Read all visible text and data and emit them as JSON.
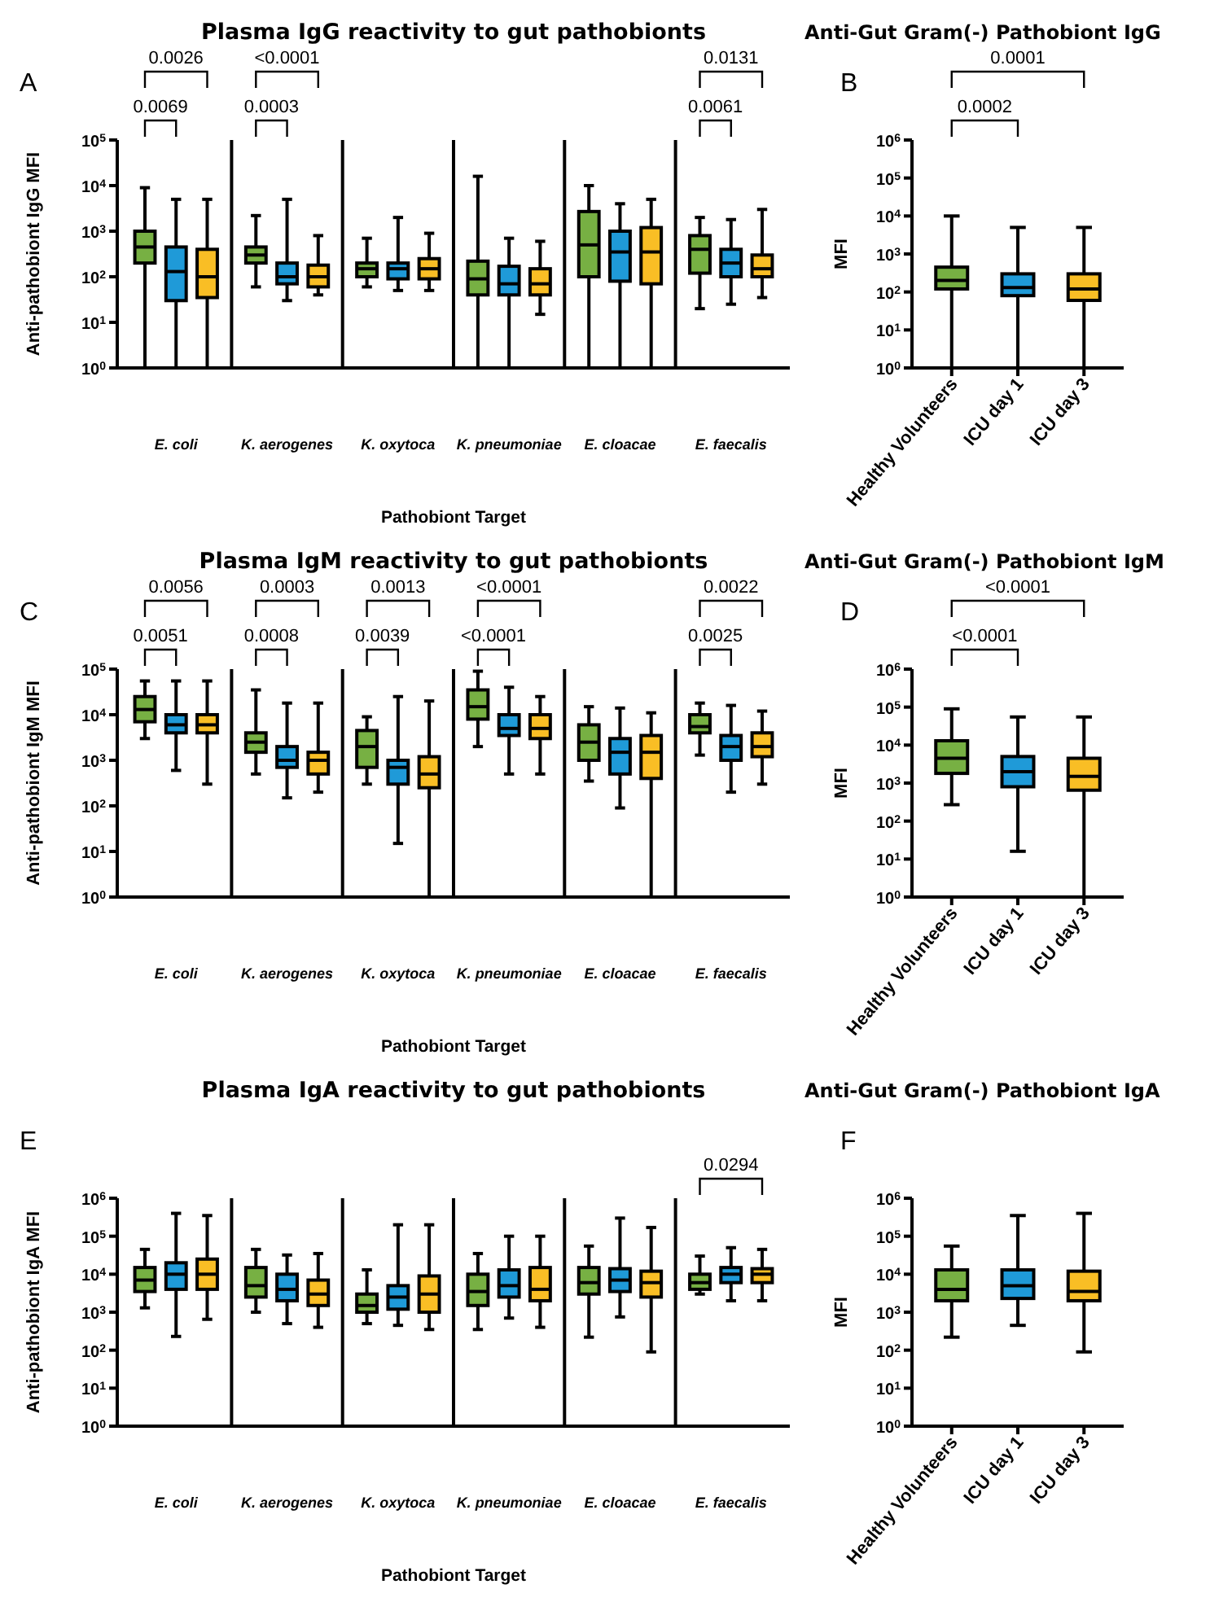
{
  "chart_data": [
    {
      "type": "box",
      "title": "Plasma IgG reactivity to gut pathobionts",
      "xlabel": "Pathobiont Target",
      "ylabel": "Anti-pathobiont IgG MFI",
      "log": true,
      "ylim": [
        1,
        100000
      ],
      "yticks": [
        {
          "value": 1,
          "label": "10$^{0}$"
        },
        {
          "value": 10,
          "label": "10$^{1}$"
        },
        {
          "value": 100,
          "label": "10$^{2}$"
        },
        {
          "value": 1000,
          "label": "10$^{3}$"
        },
        {
          "value": 10000,
          "label": "10$^{4}$"
        },
        {
          "value": 100000,
          "label": "10$^{5}$"
        }
      ],
      "categories": [
        "E. coli",
        "K. aerogenes",
        "K. oxytoca",
        "K. pneumoniae",
        "E. cloacae",
        "E. faecalis"
      ],
      "series": [
        {
          "color": "#77b043",
          "boxes": [
            {
              "low": 1,
              "q1": 200,
              "median": 450,
              "q3": 1000,
              "high": 9000
            },
            {
              "low": 60,
              "q1": 200,
              "median": 300,
              "q3": 450,
              "high": 2200
            },
            {
              "low": 60,
              "q1": 100,
              "median": 150,
              "q3": 200,
              "high": 700
            },
            {
              "low": 1,
              "q1": 40,
              "median": 90,
              "q3": 220,
              "high": 16000
            },
            {
              "low": 1,
              "q1": 100,
              "median": 500,
              "q3": 2700,
              "high": 10000
            },
            {
              "low": 20,
              "q1": 120,
              "median": 400,
              "q3": 800,
              "high": 2000
            }
          ]
        },
        {
          "color": "#1f9ad8",
          "boxes": [
            {
              "low": 1,
              "q1": 30,
              "median": 130,
              "q3": 450,
              "high": 5000
            },
            {
              "low": 30,
              "q1": 70,
              "median": 100,
              "q3": 200,
              "high": 5000
            },
            {
              "low": 50,
              "q1": 90,
              "median": 150,
              "q3": 200,
              "high": 2000
            },
            {
              "low": 1,
              "q1": 40,
              "median": 70,
              "q3": 170,
              "high": 700
            },
            {
              "low": 1,
              "q1": 80,
              "median": 350,
              "q3": 1000,
              "high": 4000
            },
            {
              "low": 25,
              "q1": 100,
              "median": 200,
              "q3": 400,
              "high": 1800
            }
          ]
        },
        {
          "color": "#f9be25",
          "boxes": [
            {
              "low": 1,
              "q1": 35,
              "median": 100,
              "q3": 400,
              "high": 5000
            },
            {
              "low": 40,
              "q1": 60,
              "median": 100,
              "q3": 180,
              "high": 800
            },
            {
              "low": 50,
              "q1": 90,
              "median": 150,
              "q3": 250,
              "high": 900
            },
            {
              "low": 15,
              "q1": 40,
              "median": 70,
              "q3": 150,
              "high": 600
            },
            {
              "low": 1,
              "q1": 70,
              "median": 350,
              "q3": 1200,
              "high": 5000
            },
            {
              "low": 35,
              "q1": 100,
              "median": 150,
              "q3": 300,
              "high": 3000
            }
          ]
        }
      ],
      "annotations": [
        "A",
        "0.0069",
        "0.0026",
        "0.0003",
        "<0.0001",
        "0.0061",
        "0.0131"
      ]
    },
    {
      "type": "box",
      "title": "Anti-Gut Gram(-) Pathobiont IgG",
      "ylabel": "MFI",
      "log": true,
      "ylim": [
        1,
        1000000
      ],
      "yticks": [
        {
          "value": 1,
          "label": "10$^{0}$"
        },
        {
          "value": 10,
          "label": "10$^{1}$"
        },
        {
          "value": 100,
          "label": "10$^{2}$"
        },
        {
          "value": 1000,
          "label": "10$^{3}$"
        },
        {
          "value": 10000,
          "label": "10$^{4}$"
        },
        {
          "value": 100000,
          "label": "10$^{5}$"
        },
        {
          "value": 1000000,
          "label": "10$^{6}$"
        }
      ],
      "categories": [
        "Healthy Volunteers",
        "ICU day 1",
        "ICU day 3"
      ],
      "colors": [
        "#77b043",
        "#1f9ad8",
        "#f9be25"
      ],
      "boxes": [
        {
          "low": 1,
          "q1": 120,
          "median": 200,
          "q3": 450,
          "high": 10000
        },
        {
          "low": 1,
          "q1": 80,
          "median": 130,
          "q3": 300,
          "high": 5000
        },
        {
          "low": 1,
          "q1": 60,
          "median": 120,
          "q3": 300,
          "high": 5000
        }
      ],
      "annotations": [
        "B",
        "0.0002",
        "0.0001"
      ]
    },
    {
      "type": "box",
      "title": "Plasma IgM reactivity to gut pathobionts",
      "xlabel": "Pathobiont Target",
      "ylabel": "Anti-pathobiont IgM MFI",
      "log": true,
      "ylim": [
        1,
        100000
      ],
      "yticks": [
        {
          "value": 1,
          "label": "10$^{0}$"
        },
        {
          "value": 10,
          "label": "10$^{1}$"
        },
        {
          "value": 100,
          "label": "10$^{2}$"
        },
        {
          "value": 1000,
          "label": "10$^{3}$"
        },
        {
          "value": 10000,
          "label": "10$^{4}$"
        },
        {
          "value": 100000,
          "label": "10$^{5}$"
        }
      ],
      "categories": [
        "E. coli",
        "K. aerogenes",
        "K. oxytoca",
        "K. pneumoniae",
        "E. cloacae",
        "E. faecalis"
      ],
      "series": [
        {
          "color": "#77b043",
          "boxes": [
            {
              "low": 3000,
              "q1": 7000,
              "median": 13000,
              "q3": 25000,
              "high": 55000
            },
            {
              "low": 500,
              "q1": 1500,
              "median": 2500,
              "q3": 4000,
              "high": 35000
            },
            {
              "low": 300,
              "q1": 700,
              "median": 2000,
              "q3": 4500,
              "high": 9000
            },
            {
              "low": 2000,
              "q1": 8000,
              "median": 15000,
              "q3": 35000,
              "high": 90000
            },
            {
              "low": 350,
              "q1": 1000,
              "median": 2500,
              "q3": 6000,
              "high": 15000
            },
            {
              "low": 1300,
              "q1": 4000,
              "median": 5500,
              "q3": 10000,
              "high": 18000
            }
          ]
        },
        {
          "color": "#1f9ad8",
          "boxes": [
            {
              "low": 600,
              "q1": 4000,
              "median": 6000,
              "q3": 10000,
              "high": 55000
            },
            {
              "low": 150,
              "q1": 700,
              "median": 1000,
              "q3": 2000,
              "high": 18000
            },
            {
              "low": 15,
              "q1": 300,
              "median": 700,
              "q3": 1000,
              "high": 25000
            },
            {
              "low": 500,
              "q1": 3500,
              "median": 5000,
              "q3": 10000,
              "high": 40000
            },
            {
              "low": 90,
              "q1": 500,
              "median": 1500,
              "q3": 3000,
              "high": 14000
            },
            {
              "low": 200,
              "q1": 1000,
              "median": 2000,
              "q3": 3500,
              "high": 16000
            }
          ]
        },
        {
          "color": "#f9be25",
          "boxes": [
            {
              "low": 300,
              "q1": 4000,
              "median": 6000,
              "q3": 10000,
              "high": 55000
            },
            {
              "low": 200,
              "q1": 500,
              "median": 1000,
              "q3": 1500,
              "high": 18000
            },
            {
              "low": 1,
              "q1": 250,
              "median": 500,
              "q3": 1200,
              "high": 20000
            },
            {
              "low": 500,
              "q1": 3000,
              "median": 5000,
              "q3": 10000,
              "high": 25000
            },
            {
              "low": 1,
              "q1": 400,
              "median": 1500,
              "q3": 3500,
              "high": 11000
            },
            {
              "low": 300,
              "q1": 1200,
              "median": 2000,
              "q3": 4000,
              "high": 12000
            }
          ]
        }
      ],
      "annotations": [
        "C",
        "0.0051",
        "0.0056",
        "0.0008",
        "0.0003",
        "0.0039",
        "0.0013",
        "<0.0001",
        "<0.0001",
        "0.0025",
        "0.0022"
      ]
    },
    {
      "type": "box",
      "title": "Anti-Gut Gram(-) Pathobiont IgM",
      "ylabel": "MFI",
      "log": true,
      "ylim": [
        1,
        1000000
      ],
      "yticks": [
        {
          "value": 1,
          "label": "10$^{0}$"
        },
        {
          "value": 10,
          "label": "10$^{1}$"
        },
        {
          "value": 100,
          "label": "10$^{2}$"
        },
        {
          "value": 1000,
          "label": "10$^{3}$"
        },
        {
          "value": 10000,
          "label": "10$^{4}$"
        },
        {
          "value": 100000,
          "label": "10$^{5}$"
        },
        {
          "value": 1000000,
          "label": "10$^{6}$"
        }
      ],
      "categories": [
        "Healthy Volunteers",
        "ICU day 1",
        "ICU day 3"
      ],
      "colors": [
        "#77b043",
        "#1f9ad8",
        "#f9be25"
      ],
      "boxes": [
        {
          "low": 270,
          "q1": 1800,
          "median": 4500,
          "q3": 13000,
          "high": 90000
        },
        {
          "low": 16,
          "q1": 800,
          "median": 2000,
          "q3": 5000,
          "high": 55000
        },
        {
          "low": 1,
          "q1": 650,
          "median": 1500,
          "q3": 4500,
          "high": 55000
        }
      ],
      "annotations": [
        "D",
        "<0.0001",
        "<0.0001"
      ]
    },
    {
      "type": "box",
      "title": "Plasma IgA reactivity to gut pathobionts",
      "xlabel": "Pathobiont Target",
      "ylabel": "Anti-pathobiont IgA MFI",
      "log": true,
      "ylim": [
        1,
        1000000
      ],
      "yticks": [
        {
          "value": 1,
          "label": "10$^{0}$"
        },
        {
          "value": 10,
          "label": "10$^{1}$"
        },
        {
          "value": 100,
          "label": "10$^{2}$"
        },
        {
          "value": 1000,
          "label": "10$^{3}$"
        },
        {
          "value": 10000,
          "label": "10$^{4}$"
        },
        {
          "value": 100000,
          "label": "10$^{5}$"
        },
        {
          "value": 1000000,
          "label": "10$^{6}$"
        }
      ],
      "categories": [
        "E. coli",
        "K. aerogenes",
        "K. oxytoca",
        "K. pneumoniae",
        "E. cloacae",
        "E. faecalis"
      ],
      "series": [
        {
          "color": "#77b043",
          "boxes": [
            {
              "low": 1300,
              "q1": 3500,
              "median": 7000,
              "q3": 15000,
              "high": 45000
            },
            {
              "low": 1000,
              "q1": 2500,
              "median": 5000,
              "q3": 15000,
              "high": 45000
            },
            {
              "low": 500,
              "q1": 1000,
              "median": 1500,
              "q3": 3000,
              "high": 13000
            },
            {
              "low": 350,
              "q1": 1500,
              "median": 3500,
              "q3": 10000,
              "high": 35000
            },
            {
              "low": 220,
              "q1": 3000,
              "median": 6000,
              "q3": 15000,
              "high": 55000
            },
            {
              "low": 3000,
              "q1": 4000,
              "median": 6000,
              "q3": 10000,
              "high": 30000
            }
          ]
        },
        {
          "color": "#1f9ad8",
          "boxes": [
            {
              "low": 230,
              "q1": 4000,
              "median": 10000,
              "q3": 20000,
              "high": 400000
            },
            {
              "low": 500,
              "q1": 2000,
              "median": 4000,
              "q3": 10000,
              "high": 32000
            },
            {
              "low": 450,
              "q1": 1200,
              "median": 2500,
              "q3": 5000,
              "high": 200000
            },
            {
              "low": 700,
              "q1": 2500,
              "median": 5000,
              "q3": 13000,
              "high": 100000
            },
            {
              "low": 750,
              "q1": 3500,
              "median": 7000,
              "q3": 14000,
              "high": 300000
            },
            {
              "low": 2000,
              "q1": 6000,
              "median": 10000,
              "q3": 15000,
              "high": 50000
            }
          ]
        },
        {
          "color": "#f9be25",
          "boxes": [
            {
              "low": 650,
              "q1": 4000,
              "median": 10000,
              "q3": 25000,
              "high": 350000
            },
            {
              "low": 400,
              "q1": 1500,
              "median": 3000,
              "q3": 7000,
              "high": 35000
            },
            {
              "low": 350,
              "q1": 1000,
              "median": 3000,
              "q3": 9000,
              "high": 200000
            },
            {
              "low": 400,
              "q1": 2000,
              "median": 4000,
              "q3": 15000,
              "high": 100000
            },
            {
              "low": 90,
              "q1": 2500,
              "median": 6000,
              "q3": 12000,
              "high": 170000
            },
            {
              "low": 2000,
              "q1": 6000,
              "median": 10000,
              "q3": 14000,
              "high": 45000
            }
          ]
        }
      ],
      "annotations": [
        "E",
        "0.0294"
      ]
    },
    {
      "type": "box",
      "title": "Anti-Gut Gram(-) Pathobiont IgA",
      "ylabel": "MFI",
      "log": true,
      "ylim": [
        1,
        1000000
      ],
      "yticks": [
        {
          "value": 1,
          "label": "10$^{0}$"
        },
        {
          "value": 10,
          "label": "10$^{1}$"
        },
        {
          "value": 100,
          "label": "10$^{2}$"
        },
        {
          "value": 1000,
          "label": "10$^{3}$"
        },
        {
          "value": 10000,
          "label": "10$^{4}$"
        },
        {
          "value": 100000,
          "label": "10$^{5}$"
        },
        {
          "value": 1000000,
          "label": "10$^{6}$"
        }
      ],
      "categories": [
        "Healthy Volunteers",
        "ICU day 1",
        "ICU day 3"
      ],
      "colors": [
        "#77b043",
        "#1f9ad8",
        "#f9be25"
      ],
      "boxes": [
        {
          "low": 220,
          "q1": 2000,
          "median": 4000,
          "q3": 13000,
          "high": 55000
        },
        {
          "low": 450,
          "q1": 2300,
          "median": 5000,
          "q3": 13000,
          "high": 350000
        },
        {
          "low": 90,
          "q1": 2000,
          "median": 3500,
          "q3": 12000,
          "high": 400000
        }
      ],
      "annotations": [
        "F"
      ]
    }
  ]
}
